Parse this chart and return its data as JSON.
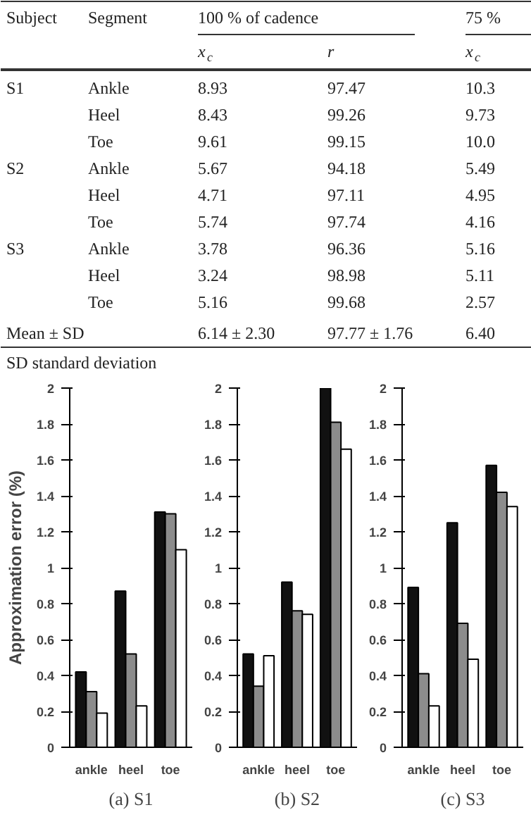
{
  "chart_data": [
    {
      "type": "other",
      "annotations": [
        "Subject",
        "Segment",
        "100 % of cadence",
        "75 %",
        "x$_{c}$",
        "r",
        "x$_{c}$",
        "S1",
        "Ankle",
        "8.93",
        "97.47",
        "10.3",
        "Heel",
        "8.43",
        "99.26",
        "9.73",
        "Toe",
        "9.61",
        "99.15",
        "10.0",
        "S2",
        "Ankle",
        "5.67",
        "94.18",
        "5.49",
        "Heel",
        "4.71",
        "97.11",
        "4.95",
        "Toe",
        "5.74",
        "97.74",
        "4.16",
        "S3",
        "Ankle",
        "3.78",
        "96.36",
        "5.16",
        "Heel",
        "3.24",
        "98.98",
        "5.11",
        "Toe",
        "5.16",
        "99.68",
        "2.57",
        "Mean ± SD",
        "6.14 ± 2.30",
        "97.77 ± 1.76",
        "6.40",
        "SD standard deviation"
      ]
    },
    {
      "type": "bar",
      "xlabel": "(a) S1",
      "ylabel": "Approximation error (%)",
      "categories": [
        "ankle",
        "heel",
        "toe"
      ],
      "ylim": [
        0,
        2
      ],
      "yticks": [
        0,
        0.2,
        0.4,
        0.6,
        0.8,
        1,
        1.2,
        1.4,
        1.6,
        1.8,
        2
      ],
      "series": [
        {
          "color": "#111111",
          "values": [
            0.42,
            0.87,
            1.31
          ]
        },
        {
          "color": "#8c8c8c",
          "values": [
            0.31,
            0.52,
            1.3
          ]
        },
        {
          "color": "#ffffff",
          "values": [
            0.19,
            0.23,
            1.1
          ]
        }
      ]
    },
    {
      "type": "bar",
      "xlabel": "(b) S2",
      "categories": [
        "ankle",
        "heel",
        "toe"
      ],
      "ylim": [
        0,
        2
      ],
      "yticks": [
        0,
        0.2,
        0.4,
        0.6,
        0.8,
        1,
        1.2,
        1.4,
        1.6,
        1.8,
        2
      ],
      "series": [
        {
          "color": "#111111",
          "values": [
            0.52,
            0.92,
            2.0
          ]
        },
        {
          "color": "#8c8c8c",
          "values": [
            0.34,
            0.76,
            1.81
          ]
        },
        {
          "color": "#ffffff",
          "values": [
            0.51,
            0.74,
            1.66
          ]
        }
      ]
    },
    {
      "type": "bar",
      "xlabel": "(c) S3",
      "categories": [
        "ankle",
        "heel",
        "toe"
      ],
      "ylim": [
        0,
        2
      ],
      "yticks": [
        0,
        0.2,
        0.4,
        0.6,
        0.8,
        1,
        1.2,
        1.4,
        1.6,
        1.8,
        2
      ],
      "series": [
        {
          "color": "#111111",
          "values": [
            0.89,
            1.25,
            1.57
          ]
        },
        {
          "color": "#8c8c8c",
          "values": [
            0.41,
            0.69,
            1.42
          ]
        },
        {
          "color": "#ffffff",
          "values": [
            0.23,
            0.49,
            1.34
          ]
        }
      ]
    }
  ]
}
